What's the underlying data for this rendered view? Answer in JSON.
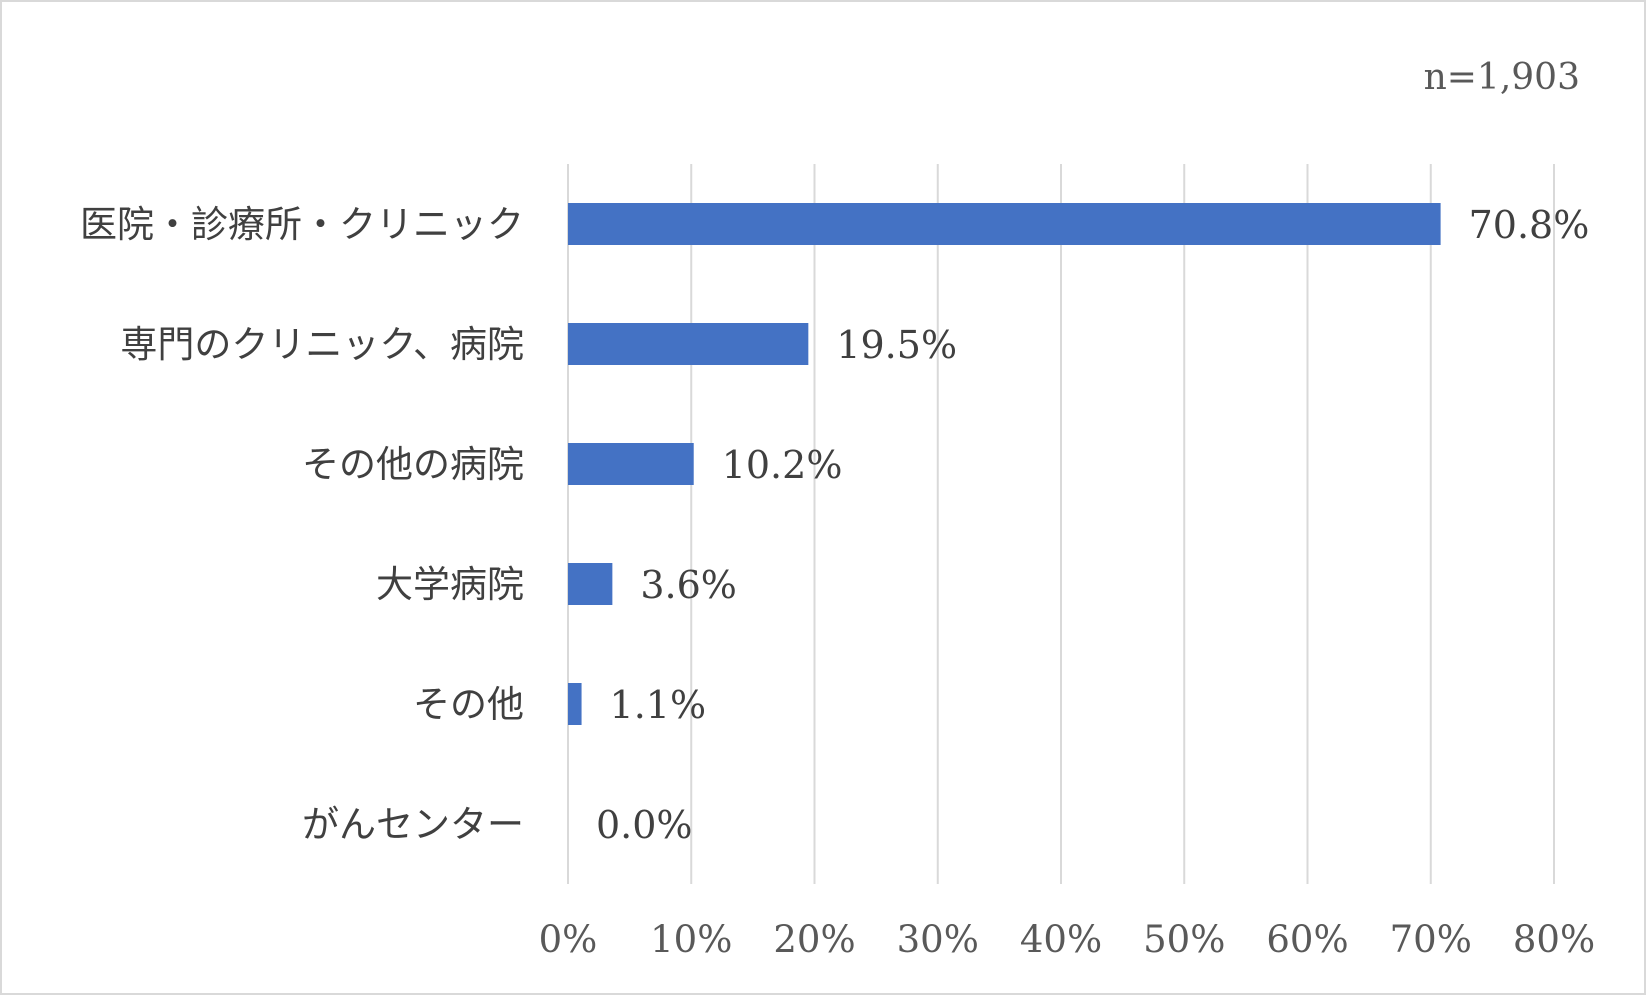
{
  "chart_data": {
    "type": "bar",
    "orientation": "horizontal",
    "note": "n=1,903",
    "categories": [
      "医院・診療所・クリニック",
      "専門のクリニック、病院",
      "その他の病院",
      "大学病院",
      "その他",
      "がんセンター"
    ],
    "values": [
      70.8,
      19.5,
      10.2,
      3.6,
      1.1,
      0.0
    ],
    "value_labels": [
      "70.8%",
      "19.5%",
      "10.2%",
      "3.6%",
      "1.1%",
      "0.0%"
    ],
    "x_ticks": [
      0,
      10,
      20,
      30,
      40,
      50,
      60,
      70,
      80
    ],
    "x_tick_labels": [
      "0%",
      "10%",
      "20%",
      "30%",
      "40%",
      "50%",
      "60%",
      "70%",
      "80%"
    ],
    "xlim": [
      0,
      80
    ],
    "grid": true,
    "bar_color": "#4472C4",
    "grid_color": "#d9d9d9",
    "xlabel": "",
    "ylabel": "",
    "title": ""
  }
}
